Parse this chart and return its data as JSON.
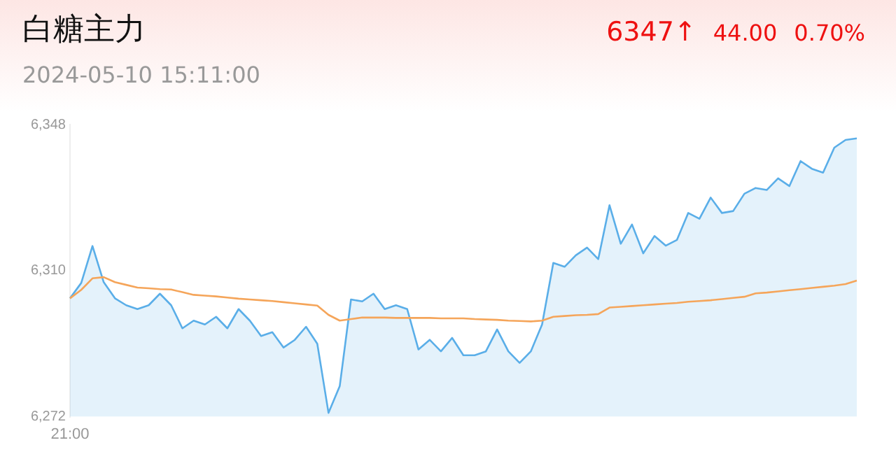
{
  "chart_data": {
    "type": "line",
    "title": "白糖主力",
    "subtitle": "2024-05-10 15:11:00",
    "annotations": [
      "6347↑",
      "44.00",
      "0.70%"
    ],
    "categories": [
      "21:00",
      null,
      null,
      null,
      null,
      null,
      null,
      null,
      null,
      null,
      null,
      null,
      null,
      null,
      null,
      null,
      null,
      null,
      null,
      null,
      null,
      null,
      null,
      null,
      null,
      null,
      null,
      null,
      null,
      null,
      null,
      null,
      null,
      null,
      null,
      null,
      null,
      null,
      null,
      null,
      null,
      null,
      null,
      null,
      null,
      null,
      null,
      null,
      null,
      null,
      null,
      null,
      null,
      null,
      null,
      null,
      null,
      null,
      null,
      null,
      null,
      null,
      null,
      null,
      null,
      null,
      null,
      null,
      null,
      null,
      null
    ],
    "series": [
      {
        "type": "area",
        "color": "#5aaee8",
        "values": [
          6302.8,
          6306.8,
          6316.4,
          6307,
          6302.8,
          6301,
          6300,
          6301,
          6304,
          6301,
          6295,
          6297,
          6296,
          6298,
          6295,
          6300,
          6297,
          6293,
          6294,
          6290,
          6292,
          6295.4,
          6291,
          6273,
          6280,
          6302.5,
          6302,
          6304,
          6300,
          6301,
          6300,
          6289.5,
          6292,
          6289,
          6292.5,
          6288,
          6288,
          6289,
          6294.7,
          6289,
          6286,
          6289,
          6296,
          6312,
          6311,
          6314,
          6316,
          6313,
          6327,
          6317,
          6322,
          6314.5,
          6319,
          6316.5,
          6318,
          6325,
          6323.5,
          6329,
          6325,
          6325.5,
          6330,
          6331.5,
          6331,
          6334,
          6332,
          6338.5,
          6336.5,
          6335.5,
          6342,
          6344,
          6344.4
        ]
      },
      {
        "type": "line",
        "color": "#f5a55a",
        "values": [
          6302.8,
          6305,
          6308,
          6308.3,
          6307,
          6306.3,
          6305.6,
          6305.4,
          6305.2,
          6305.1,
          6304.4,
          6303.7,
          6303.5,
          6303.3,
          6303,
          6302.7,
          6302.5,
          6302.3,
          6302.1,
          6301.8,
          6301.5,
          6301.2,
          6300.9,
          6298.5,
          6297,
          6297.4,
          6297.8,
          6297.8,
          6297.8,
          6297.7,
          6297.7,
          6297.7,
          6297.7,
          6297.6,
          6297.6,
          6297.6,
          6297.4,
          6297.3,
          6297.2,
          6297,
          6296.9,
          6296.8,
          6297,
          6298,
          6298.2,
          6298.4,
          6298.5,
          6298.7,
          6300.4,
          6300.6,
          6300.8,
          6301,
          6301.2,
          6301.4,
          6301.6,
          6301.9,
          6302.1,
          6302.3,
          6302.6,
          6302.9,
          6303.2,
          6304.1,
          6304.3,
          6304.6,
          6304.9,
          6305.2,
          6305.5,
          6305.8,
          6306.1,
          6306.5,
          6307.4
        ]
      }
    ],
    "ylim": [
      6272,
      6348
    ],
    "yticks": [
      {
        "value": 6272,
        "label": "6,272"
      },
      {
        "value": 6310,
        "label": "6,310"
      },
      {
        "value": 6348,
        "label": "6,348"
      }
    ],
    "grid": false
  }
}
